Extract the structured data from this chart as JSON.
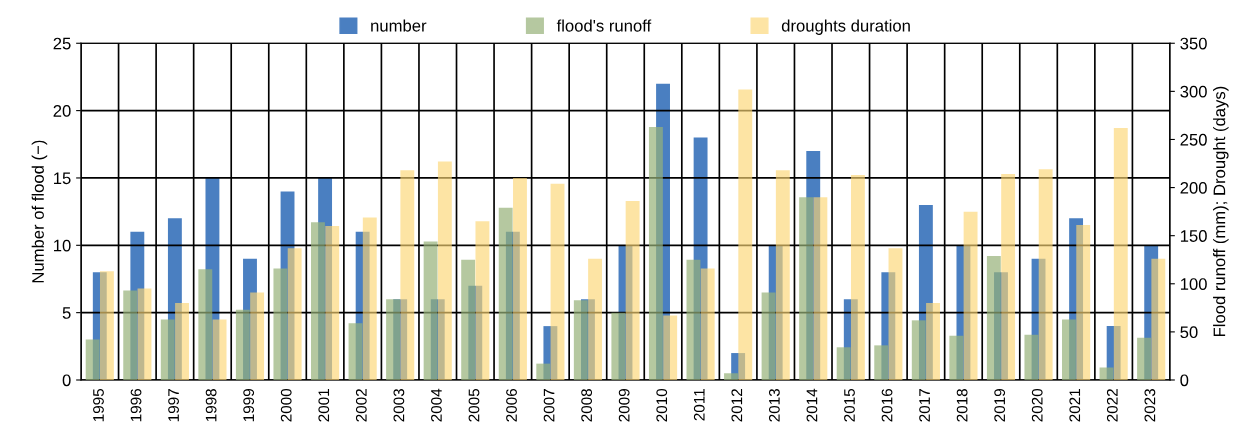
{
  "chart_data": {
    "type": "bar",
    "ylabel": "Number of flood (−)",
    "y2label": "Flood runoff (mm); Drought (days)",
    "categories": [
      "1995",
      "1996",
      "1997",
      "1998",
      "1999",
      "2000",
      "2001",
      "2002",
      "2003",
      "2004",
      "2005",
      "2006",
      "2007",
      "2008",
      "2009",
      "2010",
      "2011",
      "2012",
      "2013",
      "2014",
      "2015",
      "2016",
      "2017",
      "2018",
      "2019",
      "2020",
      "2021",
      "2022",
      "2023"
    ],
    "series": [
      {
        "name": "number",
        "color": "#4a7fc1",
        "values": [
          8,
          11,
          12,
          15,
          9,
          14,
          15,
          11,
          6,
          6,
          7,
          11,
          4,
          6,
          10,
          22,
          18,
          2,
          10,
          17,
          6,
          8,
          13,
          10,
          8,
          9,
          12,
          4,
          10
        ]
      },
      {
        "name": "flood's runoff",
        "color": "#b5c8a0",
        "axis": "y2",
        "values": [
          42,
          93,
          63,
          115,
          73,
          116,
          164,
          59,
          84,
          144,
          125,
          179,
          17,
          83,
          70,
          263,
          125,
          7,
          91,
          190,
          34,
          36,
          62,
          46,
          129,
          47,
          63,
          13,
          44
        ]
      },
      {
        "name": "droughts duration",
        "color": "#fde4a4",
        "axis": "y2",
        "values": [
          113,
          95,
          80,
          63,
          91,
          137,
          160,
          169,
          218,
          227,
          165,
          210,
          204,
          126,
          186,
          67,
          116,
          302,
          218,
          190,
          213,
          137,
          80,
          175,
          214,
          219,
          161,
          262,
          126
        ]
      }
    ],
    "ylim": [
      0,
      25
    ],
    "yticks": [
      0,
      5,
      10,
      15,
      20,
      25
    ],
    "y2lim": [
      0,
      350
    ],
    "y2ticks": [
      0,
      50,
      100,
      150,
      200,
      250,
      300,
      350
    ],
    "grid": true,
    "legend": "top"
  }
}
